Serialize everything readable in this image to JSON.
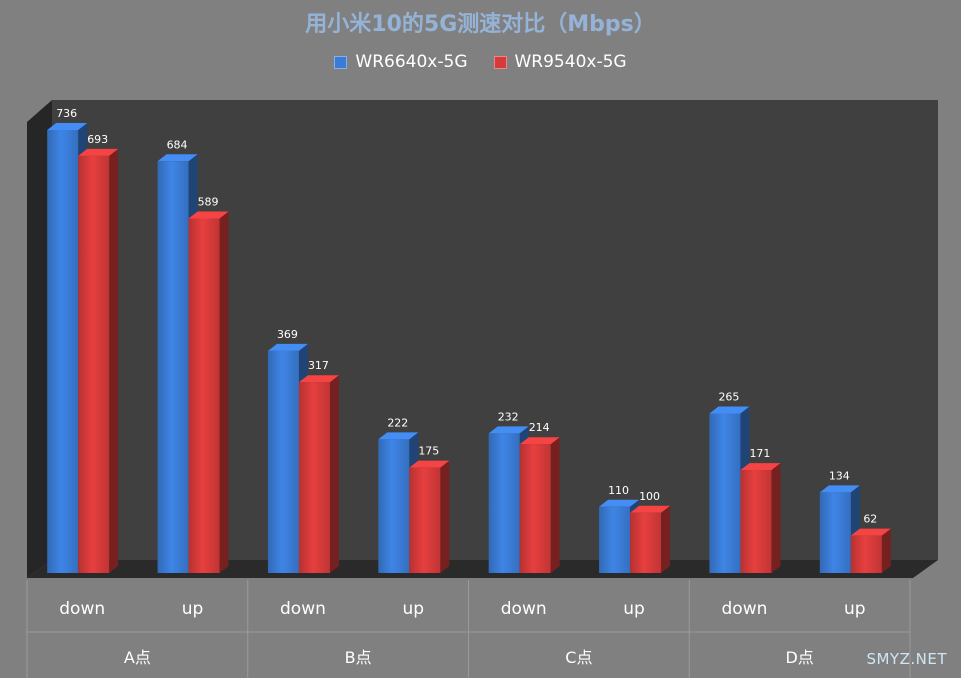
{
  "chart_data": {
    "type": "bar",
    "title": "用小米10的5G测速对比（Mbps）",
    "categories": [
      "down",
      "up",
      "down",
      "up",
      "down",
      "up",
      "down",
      "up"
    ],
    "groups": [
      "A点",
      "B点",
      "C点",
      "D点"
    ],
    "series": [
      {
        "name": "WR6640x-5G",
        "color": "#3a7bd5",
        "values": [
          736,
          684,
          369,
          222,
          232,
          110,
          265,
          134
        ]
      },
      {
        "name": "WR9540x-5G",
        "color": "#d63a3a",
        "values": [
          693,
          589,
          317,
          175,
          214,
          100,
          171,
          62
        ]
      }
    ],
    "ylim": [
      0,
      800
    ],
    "xlabel": "",
    "ylabel": "",
    "legend": "top",
    "grid": false
  },
  "watermark": "SMYZ.NET"
}
